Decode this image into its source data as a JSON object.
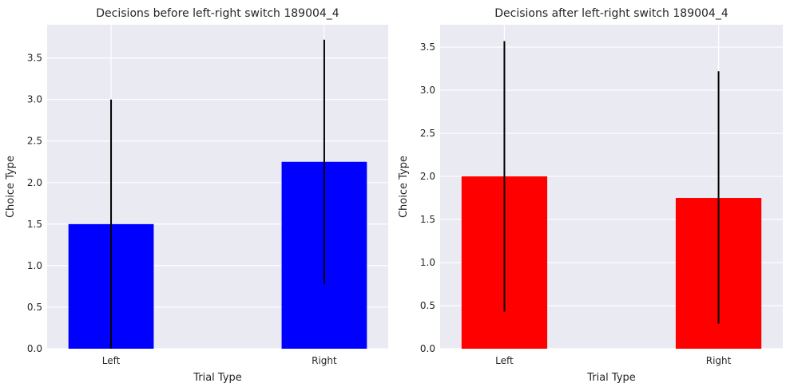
{
  "chart_data": [
    {
      "type": "bar",
      "title": "Decisions before left-right switch 189004_4",
      "xlabel": "Trial Type",
      "ylabel": "Choice Type",
      "categories": [
        "Left",
        "Right"
      ],
      "values": [
        1.5,
        2.25
      ],
      "error_low": [
        0.0,
        0.78
      ],
      "error_high": [
        3.0,
        3.72
      ],
      "ylim": [
        0,
        3.9
      ],
      "yticks": [
        0.0,
        0.5,
        1.0,
        1.5,
        2.0,
        2.5,
        3.0,
        3.5
      ],
      "ytick_labels": [
        "0.0",
        "0.5",
        "1.0",
        "1.5",
        "2.0",
        "2.5",
        "3.0",
        "3.5"
      ],
      "bar_color": "#0000ff",
      "error_color": "#000000",
      "grid": true,
      "background": "#eaeaf2"
    },
    {
      "type": "bar",
      "title": "Decisions after left-right switch 189004_4",
      "xlabel": "Trial Type",
      "ylabel": "Choice Type",
      "categories": [
        "Left",
        "Right"
      ],
      "values": [
        2.0,
        1.75
      ],
      "error_low": [
        0.43,
        0.29
      ],
      "error_high": [
        3.57,
        3.22
      ],
      "ylim": [
        0,
        3.76
      ],
      "yticks": [
        0.0,
        0.5,
        1.0,
        1.5,
        2.0,
        2.5,
        3.0,
        3.5
      ],
      "ytick_labels": [
        "0.0",
        "0.5",
        "1.0",
        "1.5",
        "2.0",
        "2.5",
        "3.0",
        "3.5"
      ],
      "bar_color": "#ff0000",
      "error_color": "#000000",
      "grid": true,
      "background": "#eaeaf2"
    }
  ]
}
